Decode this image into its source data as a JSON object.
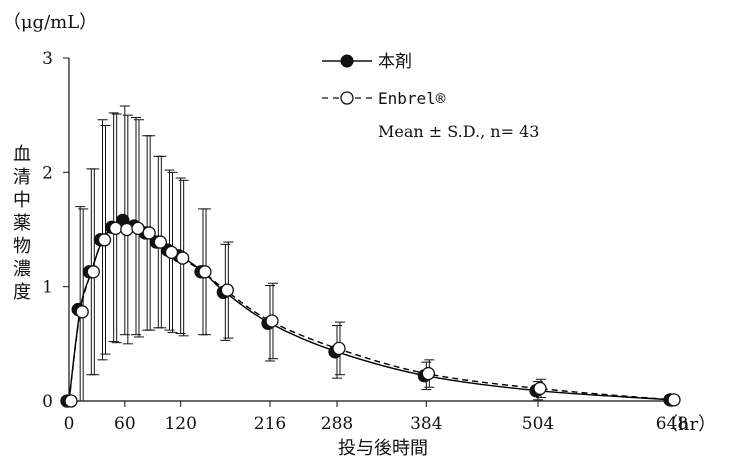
{
  "chart_data": {
    "type": "line",
    "unit_label": "（μg/mL）",
    "ylabel": "血清中薬物濃度",
    "xlabel": "投与後時間",
    "x_unit": "（hr）",
    "xlim": [
      0,
      648
    ],
    "ylim": [
      0,
      3
    ],
    "x_ticks": [
      0,
      60,
      120,
      216,
      288,
      384,
      504,
      648
    ],
    "y_ticks": [
      0,
      1,
      2,
      3
    ],
    "legend_placement": "top-center",
    "annotation": "Mean ± S.D., n= 43",
    "series": [
      {
        "name": "本剤",
        "marker": "filled-circle",
        "line": "solid",
        "color": "#000000",
        "x": [
          0,
          12,
          24,
          36,
          48,
          60,
          72,
          84,
          96,
          108,
          120,
          144,
          168,
          216,
          288,
          384,
          504,
          648
        ],
        "y": [
          0.0,
          0.8,
          1.13,
          1.41,
          1.52,
          1.58,
          1.53,
          1.47,
          1.39,
          1.32,
          1.27,
          1.13,
          0.95,
          0.68,
          0.43,
          0.22,
          0.09,
          0.01
        ],
        "sd": [
          0.0,
          0.9,
          0.9,
          1.05,
          1.0,
          1.0,
          0.95,
          0.85,
          0.75,
          0.7,
          0.68,
          0.55,
          0.42,
          0.33,
          0.23,
          0.12,
          0.08,
          0.0
        ]
      },
      {
        "name": "Enbrel®",
        "marker": "open-circle",
        "line": "dashed",
        "color": "#000000",
        "x": [
          0,
          12,
          24,
          36,
          48,
          60,
          72,
          84,
          96,
          108,
          120,
          144,
          168,
          216,
          288,
          384,
          504,
          648
        ],
        "y": [
          0.0,
          0.78,
          1.13,
          1.41,
          1.51,
          1.5,
          1.51,
          1.47,
          1.39,
          1.3,
          1.25,
          1.13,
          0.97,
          0.7,
          0.46,
          0.24,
          0.11,
          0.01
        ],
        "sd": [
          0.0,
          0.9,
          0.9,
          1.0,
          1.0,
          1.0,
          0.95,
          0.85,
          0.75,
          0.7,
          0.68,
          0.55,
          0.42,
          0.33,
          0.23,
          0.12,
          0.08,
          0.0
        ]
      }
    ]
  }
}
